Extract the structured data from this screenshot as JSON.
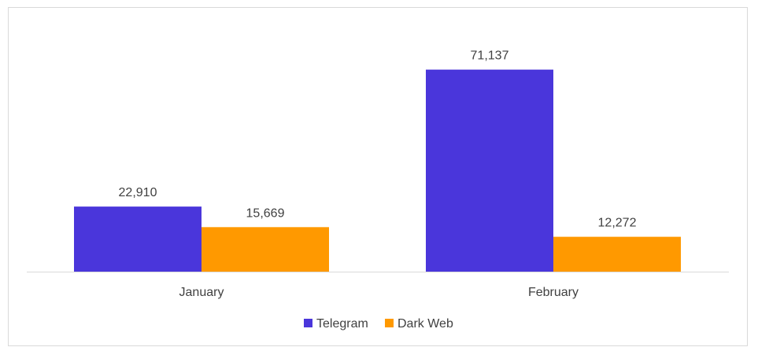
{
  "chart_data": {
    "type": "bar",
    "categories": [
      "January",
      "February"
    ],
    "series": [
      {
        "name": "Telegram",
        "values": [
          22910,
          71137
        ],
        "value_labels": [
          "22,910",
          "71,137"
        ],
        "color": "#4a36db"
      },
      {
        "name": "Dark Web",
        "values": [
          15669,
          12272
        ],
        "value_labels": [
          "15,669",
          "12,272"
        ],
        "color": "#ff9900"
      }
    ],
    "ylim": [
      0,
      80000
    ],
    "grid": false,
    "legend_position": "bottom"
  }
}
